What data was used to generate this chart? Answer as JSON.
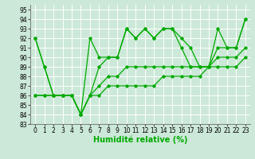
{
  "xlabel": "Humidité relative (%)",
  "bg_color": "#cce8d8",
  "grid_color": "#ffffff",
  "line_color": "#00aa00",
  "xlim": [
    -0.5,
    23.5
  ],
  "ylim": [
    83,
    95.5
  ],
  "yticks": [
    83,
    84,
    85,
    86,
    87,
    88,
    89,
    90,
    91,
    92,
    93,
    94,
    95
  ],
  "xticks": [
    0,
    1,
    2,
    3,
    4,
    5,
    6,
    7,
    8,
    9,
    10,
    11,
    12,
    13,
    14,
    15,
    16,
    17,
    18,
    19,
    20,
    21,
    22,
    23
  ],
  "series": [
    [
      92,
      89,
      86,
      86,
      86,
      84,
      92,
      90,
      90,
      90,
      93,
      92,
      93,
      92,
      93,
      93,
      92,
      91,
      89,
      89,
      93,
      91,
      91,
      94
    ],
    [
      92,
      89,
      86,
      86,
      86,
      84,
      86,
      89,
      90,
      90,
      93,
      92,
      93,
      92,
      93,
      93,
      91,
      89,
      89,
      89,
      91,
      91,
      91,
      94
    ],
    [
      86,
      86,
      86,
      86,
      86,
      84,
      86,
      87,
      88,
      88,
      89,
      89,
      89,
      89,
      89,
      89,
      89,
      89,
      89,
      89,
      90,
      90,
      90,
      91
    ],
    [
      86,
      86,
      86,
      86,
      86,
      84,
      86,
      86,
      87,
      87,
      87,
      87,
      87,
      87,
      88,
      88,
      88,
      88,
      88,
      89,
      89,
      89,
      89,
      90
    ]
  ],
  "xlabel_fontsize": 7,
  "tick_fontsize": 5.5
}
